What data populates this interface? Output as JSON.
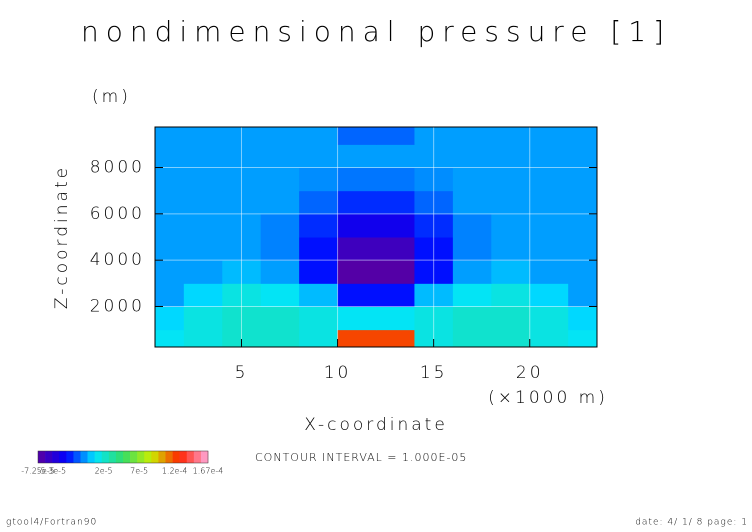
{
  "chart_data": {
    "type": "contour",
    "title": "nondimensional pressure [1]",
    "x_label": "X-coordinate",
    "x_unit": "(×1000 m)",
    "y_label": "Z-coordinate",
    "y_unit": "(m)",
    "x": [
      1,
      3,
      5,
      7,
      9,
      11,
      13,
      15,
      17,
      19,
      21,
      23
    ],
    "y": [
      500,
      1500,
      2500,
      3500,
      4500,
      5500,
      6500,
      7500,
      8500,
      9500
    ],
    "z": [
      [
        1e-05,
        1.5e-05,
        2e-05,
        2e-05,
        1.5e-05,
        0.00012,
        0.00012,
        1.5e-05,
        2e-05,
        2e-05,
        1.5e-05,
        1e-05
      ],
      [
        5e-06,
        1.5e-05,
        2e-05,
        2e-05,
        1.5e-05,
        1e-05,
        1e-05,
        1.5e-05,
        2e-05,
        2e-05,
        1.5e-05,
        5e-06
      ],
      [
        -5e-06,
        5e-06,
        1.5e-05,
        1e-05,
        0,
        -3e-05,
        -3e-05,
        0,
        1e-05,
        1.5e-05,
        5e-06,
        -5e-06
      ],
      [
        -5e-06,
        -5e-06,
        0,
        -5e-06,
        -3e-05,
        -7e-05,
        -7e-05,
        -3e-05,
        -5e-06,
        0,
        -5e-06,
        -5e-06
      ],
      [
        -5e-06,
        -5e-06,
        -5e-06,
        -1e-05,
        -3e-05,
        -6e-05,
        -6e-05,
        -3e-05,
        -1e-05,
        -5e-06,
        -5e-06,
        -5e-06
      ],
      [
        -5e-06,
        -5e-06,
        -5e-06,
        -1e-05,
        -2.5e-05,
        -4e-05,
        -4e-05,
        -2.5e-05,
        -1e-05,
        -5e-06,
        -5e-06,
        -5e-06
      ],
      [
        -5e-06,
        -5e-06,
        -5e-06,
        -5e-06,
        -1.5e-05,
        -2.5e-05,
        -2.5e-05,
        -1.5e-05,
        -5e-06,
        -5e-06,
        -5e-06,
        -5e-06
      ],
      [
        -5e-06,
        -5e-06,
        -5e-06,
        -5e-06,
        -8e-06,
        -1.2e-05,
        -1.2e-05,
        -8e-06,
        -5e-06,
        -5e-06,
        -5e-06,
        -5e-06
      ],
      [
        -5e-06,
        -5e-06,
        -5e-06,
        -5e-06,
        -5e-06,
        -5e-06,
        -5e-06,
        -5e-06,
        -5e-06,
        -5e-06,
        -5e-06,
        -5e-06
      ],
      [
        -5e-06,
        -5e-06,
        -5e-06,
        -5e-06,
        -5e-06,
        -1.5e-05,
        -1.5e-05,
        -5e-06,
        -5e-06,
        -5e-06,
        -5e-06,
        -5e-06
      ]
    ],
    "xlim": [
      0.5,
      23.5
    ],
    "ylim": [
      250,
      9750
    ],
    "xticks": [
      5,
      10,
      15,
      20
    ],
    "yticks": [
      2000,
      4000,
      6000,
      8000
    ],
    "grid": true,
    "colormap": [
      "#5a00a0",
      "#0000ff",
      "#00e5ff",
      "#33dd66",
      "#ccee00",
      "#ff2200",
      "#ffaadd"
    ],
    "colorbar": {
      "lim": [
        -7.25e-05,
        0.000167
      ],
      "ticks": [
        {
          "value": -7.25e-05,
          "label": "-7.25e-5"
        },
        {
          "value": -5.3e-05,
          "label": "-5.3e-5"
        },
        {
          "value": 2e-05,
          "label": "2e-5"
        },
        {
          "value": 7e-05,
          "label": "7e-5"
        },
        {
          "value": 0.00012,
          "label": "1.2e-4"
        },
        {
          "value": 0.000167,
          "label": "1.67e-4"
        }
      ]
    },
    "contour_interval_text": "CONTOUR INTERVAL = 1.000E-05",
    "footer_left": "gtool4/Fortran90",
    "footer_right": "date: 4/ 1/ 8 page: 1"
  }
}
